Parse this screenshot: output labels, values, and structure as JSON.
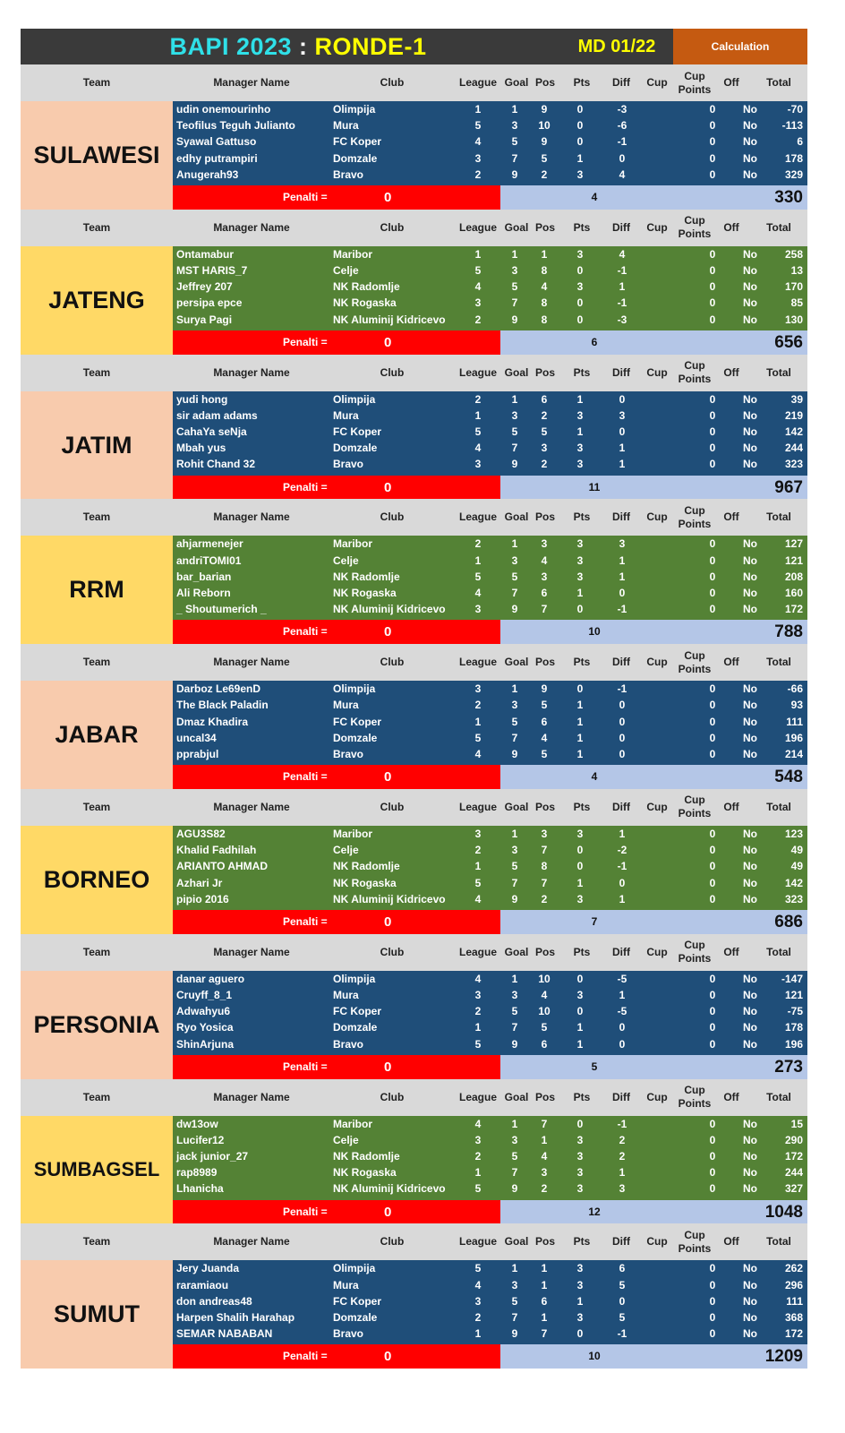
{
  "title": {
    "bapi": "BAPI 2023",
    "separator": " : ",
    "ronde": "RONDE-1",
    "matchday": "MD 01/22",
    "calculation": "Calculation"
  },
  "headers": [
    "Team",
    "Manager Name",
    "Club",
    "League",
    "Goal",
    "Pos",
    "Pts",
    "Diff",
    "Cup",
    "Cup Points",
    "Off",
    "Total"
  ],
  "penalty_label": "Penalti =",
  "colors": {
    "blue_rows": "#1f4e79",
    "green_rows": "#548235",
    "penalty": "#ff0000",
    "header": "#d9d9d9",
    "peach": "#f8cbad",
    "yellow": "#ffd966",
    "calc": "#c55a11"
  },
  "teams": [
    {
      "name": "SULAWESI",
      "team_color": "peach",
      "row_color": "blue",
      "penalty": "0",
      "pts_sum": "4",
      "total": "330",
      "rows": [
        [
          "udin onemourinho",
          "Olimpija",
          "1",
          "1",
          "9",
          "0",
          "-3",
          "",
          "0",
          "No",
          "-70"
        ],
        [
          "Teofilus Teguh Julianto",
          "Mura",
          "5",
          "3",
          "10",
          "0",
          "-6",
          "",
          "0",
          "No",
          "-113"
        ],
        [
          "Syawal Gattuso",
          "FC Koper",
          "4",
          "5",
          "9",
          "0",
          "-1",
          "",
          "0",
          "No",
          "6"
        ],
        [
          "edhy putrampiri",
          "Domzale",
          "3",
          "7",
          "5",
          "1",
          "0",
          "",
          "0",
          "No",
          "178"
        ],
        [
          "Anugerah93",
          "Bravo",
          "2",
          "9",
          "2",
          "3",
          "4",
          "",
          "0",
          "No",
          "329"
        ]
      ]
    },
    {
      "name": "JATENG",
      "team_color": "yellow",
      "row_color": "green",
      "penalty": "0",
      "pts_sum": "6",
      "total": "656",
      "rows": [
        [
          "Ontamabur",
          "Maribor",
          "1",
          "1",
          "1",
          "3",
          "4",
          "",
          "0",
          "No",
          "258"
        ],
        [
          "MST HARIS_7",
          "Celje",
          "5",
          "3",
          "8",
          "0",
          "-1",
          "",
          "0",
          "No",
          "13"
        ],
        [
          "Jeffrey 207",
          "NK Radomlje",
          "4",
          "5",
          "4",
          "3",
          "1",
          "",
          "0",
          "No",
          "170"
        ],
        [
          "persipa epce",
          "NK Rogaska",
          "3",
          "7",
          "8",
          "0",
          "-1",
          "",
          "0",
          "No",
          "85"
        ],
        [
          "Surya Pagi",
          "NK Aluminij Kidricevo",
          "2",
          "9",
          "8",
          "0",
          "-3",
          "",
          "0",
          "No",
          "130"
        ]
      ]
    },
    {
      "name": "JATIM",
      "team_color": "peach",
      "row_color": "blue",
      "penalty": "0",
      "pts_sum": "11",
      "total": "967",
      "rows": [
        [
          "yudi hong",
          "Olimpija",
          "2",
          "1",
          "6",
          "1",
          "0",
          "",
          "0",
          "No",
          "39"
        ],
        [
          "sir adam adams",
          "Mura",
          "1",
          "3",
          "2",
          "3",
          "3",
          "",
          "0",
          "No",
          "219"
        ],
        [
          "CahaYa seNja",
          "FC Koper",
          "5",
          "5",
          "5",
          "1",
          "0",
          "",
          "0",
          "No",
          "142"
        ],
        [
          "Mbah yus",
          "Domzale",
          "4",
          "7",
          "3",
          "3",
          "1",
          "",
          "0",
          "No",
          "244"
        ],
        [
          "Rohit Chand 32",
          "Bravo",
          "3",
          "9",
          "2",
          "3",
          "1",
          "",
          "0",
          "No",
          "323"
        ]
      ]
    },
    {
      "name": "RRM",
      "team_color": "yellow",
      "row_color": "green",
      "penalty": "0",
      "pts_sum": "10",
      "total": "788",
      "rows": [
        [
          "ahjarmenejer",
          "Maribor",
          "2",
          "1",
          "3",
          "3",
          "3",
          "",
          "0",
          "No",
          "127"
        ],
        [
          "andriTOMI01",
          "Celje",
          "1",
          "3",
          "4",
          "3",
          "1",
          "",
          "0",
          "No",
          "121"
        ],
        [
          "bar_barian",
          "NK Radomlje",
          "5",
          "5",
          "3",
          "3",
          "1",
          "",
          "0",
          "No",
          "208"
        ],
        [
          "Ali Reborn",
          "NK Rogaska",
          "4",
          "7",
          "6",
          "1",
          "0",
          "",
          "0",
          "No",
          "160"
        ],
        [
          "_ Shoutumerich _",
          "NK Aluminij Kidricevo",
          "3",
          "9",
          "7",
          "0",
          "-1",
          "",
          "0",
          "No",
          "172"
        ]
      ]
    },
    {
      "name": "JABAR",
      "team_color": "peach",
      "row_color": "blue",
      "penalty": "0",
      "pts_sum": "4",
      "total": "548",
      "rows": [
        [
          "Darboz Le69enD",
          "Olimpija",
          "3",
          "1",
          "9",
          "0",
          "-1",
          "",
          "0",
          "No",
          "-66"
        ],
        [
          "The Black Paladin",
          "Mura",
          "2",
          "3",
          "5",
          "1",
          "0",
          "",
          "0",
          "No",
          "93"
        ],
        [
          "Dmaz Khadira",
          "FC Koper",
          "1",
          "5",
          "6",
          "1",
          "0",
          "",
          "0",
          "No",
          "111"
        ],
        [
          "uncal34",
          "Domzale",
          "5",
          "7",
          "4",
          "1",
          "0",
          "",
          "0",
          "No",
          "196"
        ],
        [
          "pprabjul",
          "Bravo",
          "4",
          "9",
          "5",
          "1",
          "0",
          "",
          "0",
          "No",
          "214"
        ]
      ]
    },
    {
      "name": "BORNEO",
      "team_color": "yellow",
      "row_color": "green",
      "penalty": "0",
      "pts_sum": "7",
      "total": "686",
      "rows": [
        [
          "AGU3S82",
          "Maribor",
          "3",
          "1",
          "3",
          "3",
          "1",
          "",
          "0",
          "No",
          "123"
        ],
        [
          "Khalid Fadhilah",
          "Celje",
          "2",
          "3",
          "7",
          "0",
          "-2",
          "",
          "0",
          "No",
          "49"
        ],
        [
          "ARIANTO AHMAD",
          "NK Radomlje",
          "1",
          "5",
          "8",
          "0",
          "-1",
          "",
          "0",
          "No",
          "49"
        ],
        [
          "Azhari Jr",
          "NK Rogaska",
          "5",
          "7",
          "7",
          "1",
          "0",
          "",
          "0",
          "No",
          "142"
        ],
        [
          "pipio 2016",
          "NK Aluminij Kidricevo",
          "4",
          "9",
          "2",
          "3",
          "1",
          "",
          "0",
          "No",
          "323"
        ]
      ]
    },
    {
      "name": "PERSONIA",
      "team_color": "peach",
      "row_color": "blue",
      "penalty": "0",
      "pts_sum": "5",
      "total": "273",
      "rows": [
        [
          "danar aguero",
          "Olimpija",
          "4",
          "1",
          "10",
          "0",
          "-5",
          "",
          "0",
          "No",
          "-147"
        ],
        [
          "Cruyff_8_1",
          "Mura",
          "3",
          "3",
          "4",
          "3",
          "1",
          "",
          "0",
          "No",
          "121"
        ],
        [
          "Adwahyu6",
          "FC Koper",
          "2",
          "5",
          "10",
          "0",
          "-5",
          "",
          "0",
          "No",
          "-75"
        ],
        [
          "Ryo Yosica",
          "Domzale",
          "1",
          "7",
          "5",
          "1",
          "0",
          "",
          "0",
          "No",
          "178"
        ],
        [
          "ShinArjuna",
          "Bravo",
          "5",
          "9",
          "6",
          "1",
          "0",
          "",
          "0",
          "No",
          "196"
        ]
      ]
    },
    {
      "name": "SUMBAGSEL",
      "team_color": "yellow",
      "row_color": "green",
      "penalty": "0",
      "pts_sum": "12",
      "total": "1048",
      "rows": [
        [
          "dw13ow",
          "Maribor",
          "4",
          "1",
          "7",
          "0",
          "-1",
          "",
          "0",
          "No",
          "15"
        ],
        [
          "Lucifer12",
          "Celje",
          "3",
          "3",
          "1",
          "3",
          "2",
          "",
          "0",
          "No",
          "290"
        ],
        [
          "jack junior_27",
          "NK Radomlje",
          "2",
          "5",
          "4",
          "3",
          "2",
          "",
          "0",
          "No",
          "172"
        ],
        [
          "rap8989",
          "NK Rogaska",
          "1",
          "7",
          "3",
          "3",
          "1",
          "",
          "0",
          "No",
          "244"
        ],
        [
          "Lhanicha",
          "NK Aluminij Kidricevo",
          "5",
          "9",
          "2",
          "3",
          "3",
          "",
          "0",
          "No",
          "327"
        ]
      ]
    },
    {
      "name": "SUMUT",
      "team_color": "peach",
      "row_color": "blue",
      "penalty": "0",
      "pts_sum": "10",
      "total": "1209",
      "rows": [
        [
          "Jery Juanda",
          "Olimpija",
          "5",
          "1",
          "1",
          "3",
          "6",
          "",
          "0",
          "No",
          "262"
        ],
        [
          "raramiaou",
          "Mura",
          "4",
          "3",
          "1",
          "3",
          "5",
          "",
          "0",
          "No",
          "296"
        ],
        [
          "don andreas48",
          "FC Koper",
          "3",
          "5",
          "6",
          "1",
          "0",
          "",
          "0",
          "No",
          "111"
        ],
        [
          "Harpen Shalih Harahap",
          "Domzale",
          "2",
          "7",
          "1",
          "3",
          "5",
          "",
          "0",
          "No",
          "368"
        ],
        [
          "SEMAR NABABAN",
          "Bravo",
          "1",
          "9",
          "7",
          "0",
          "-1",
          "",
          "0",
          "No",
          "172"
        ]
      ]
    }
  ]
}
